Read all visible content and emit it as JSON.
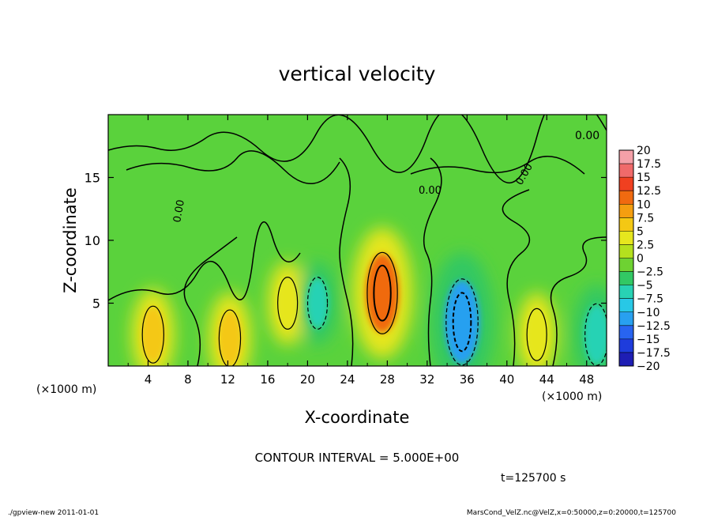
{
  "chart_data": {
    "type": "heatmap",
    "title": "vertical velocity",
    "xlabel": "X-coordinate",
    "ylabel": "Z-coordinate",
    "x_unit_left": "(×1000 m)",
    "x_unit_right": "(×1000 m)",
    "xlim": [
      0,
      50
    ],
    "ylim": [
      0,
      20
    ],
    "x_ticks": [
      4,
      8,
      12,
      16,
      20,
      24,
      28,
      32,
      36,
      40,
      44,
      48
    ],
    "y_ticks": [
      5,
      10,
      15
    ],
    "contour_interval_text": "CONTOUR INTERVAL = 5.000E+00",
    "contour_label": "0.00",
    "time_text": "t=125700 s",
    "colorbar": {
      "levels": [
        "20",
        "17.5",
        "15",
        "12.5",
        "10",
        "7.5",
        "5",
        "2.5",
        "0",
        "-2.5",
        "-5",
        "-7.5",
        "-10",
        "-12.5",
        "-15",
        "-17.5",
        "-20"
      ],
      "colors": [
        "#f4a0a8",
        "#f06a6a",
        "#f04020",
        "#f06a10",
        "#f49e10",
        "#f4c814",
        "#e6e61e",
        "#b4e01e",
        "#6ed232",
        "#32c864",
        "#28d2b4",
        "#28c8e6",
        "#28a0f0",
        "#2864f0",
        "#1e3cdc",
        "#1e1eb4",
        "#6414b4"
      ]
    },
    "features": [
      {
        "x": 4.5,
        "z": 2.5,
        "value": 6,
        "kind": "updraft"
      },
      {
        "x": 12.2,
        "z": 2.2,
        "value": 6,
        "kind": "updraft"
      },
      {
        "x": 18.0,
        "z": 5.0,
        "value": 5,
        "kind": "updraft"
      },
      {
        "x": 21.0,
        "z": 5.0,
        "value": -5,
        "kind": "downdraft"
      },
      {
        "x": 27.5,
        "z": 5.8,
        "value": 11,
        "kind": "updraft"
      },
      {
        "x": 35.5,
        "z": 3.5,
        "value": -12,
        "kind": "downdraft"
      },
      {
        "x": 43.0,
        "z": 2.5,
        "value": 5,
        "kind": "updraft"
      },
      {
        "x": 49.0,
        "z": 2.5,
        "value": -7,
        "kind": "downdraft"
      }
    ]
  },
  "footer": {
    "left": "./gpview-new   2011-01-01",
    "right": "MarsCond_VelZ.nc@VelZ,x=0:50000,z=0:20000,t=125700"
  }
}
